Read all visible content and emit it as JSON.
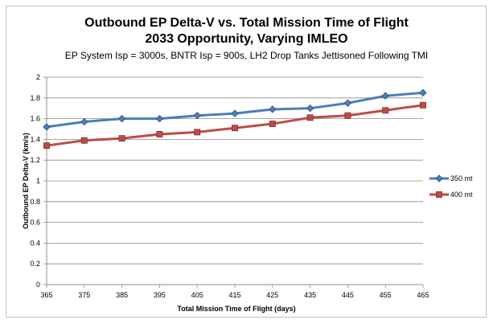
{
  "chart_data": {
    "type": "line",
    "title": "Outbound EP Delta-V vs. Total Mission Time of Flight",
    "title_line2": "2033 Opportunity, Varying IMLEO",
    "subtitle": "EP System Isp = 3000s, BNTR Isp = 900s, LH2 Drop Tanks Jettisoned Following TMI",
    "xlabel": "Total Mission Time of Flight (days)",
    "ylabel": "Outbound EP Delta-V (km/s)",
    "x": [
      365,
      375,
      385,
      395,
      405,
      415,
      425,
      435,
      445,
      455,
      465
    ],
    "x_tick_labels": [
      "365",
      "375",
      "385",
      "395",
      "405",
      "415",
      "425",
      "435",
      "445",
      "455",
      "465"
    ],
    "ylim": [
      0,
      2
    ],
    "y_ticks": [
      0,
      0.2,
      0.4,
      0.6,
      0.8,
      1,
      1.2,
      1.4,
      1.6,
      1.8,
      2
    ],
    "y_tick_labels": [
      "0",
      "0.2",
      "0.4",
      "0.6",
      "0.8",
      "1",
      "1.2",
      "1.4",
      "1.6",
      "1.8",
      "2"
    ],
    "grid": "horizontal",
    "legend_position": "right",
    "series": [
      {
        "name": "350 mt",
        "color": "#4a7ebb",
        "marker": "diamond",
        "values": [
          1.52,
          1.57,
          1.6,
          1.6,
          1.63,
          1.65,
          1.69,
          1.7,
          1.75,
          1.82,
          1.85
        ]
      },
      {
        "name": "400 mt",
        "color": "#be4b48",
        "marker": "square",
        "values": [
          1.34,
          1.39,
          1.41,
          1.45,
          1.47,
          1.51,
          1.55,
          1.61,
          1.63,
          1.68,
          1.73
        ]
      }
    ]
  }
}
